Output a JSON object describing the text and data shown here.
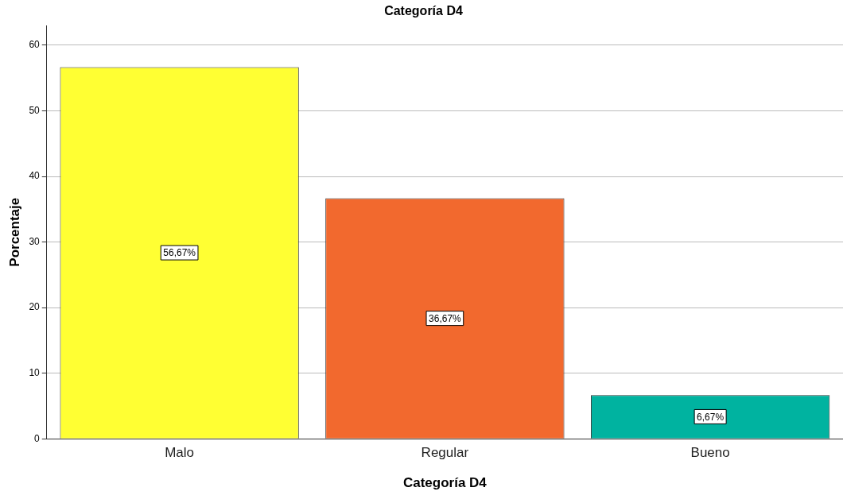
{
  "chart_data": {
    "type": "bar",
    "title": "Categoría D4",
    "xlabel": "Categoría D4",
    "ylabel": "Porcentaje",
    "categories": [
      "Malo",
      "Regular",
      "Bueno"
    ],
    "values": [
      56.67,
      36.67,
      6.67
    ],
    "colors": [
      "#ffff33",
      "#f2692e",
      "#00b3a0"
    ],
    "value_labels": [
      "56,67%",
      "36,67%",
      "6,67%"
    ],
    "ylim": [
      0,
      63
    ],
    "yticks": [
      0,
      10,
      20,
      30,
      40,
      50,
      60
    ],
    "grid": "y",
    "legend": false
  }
}
